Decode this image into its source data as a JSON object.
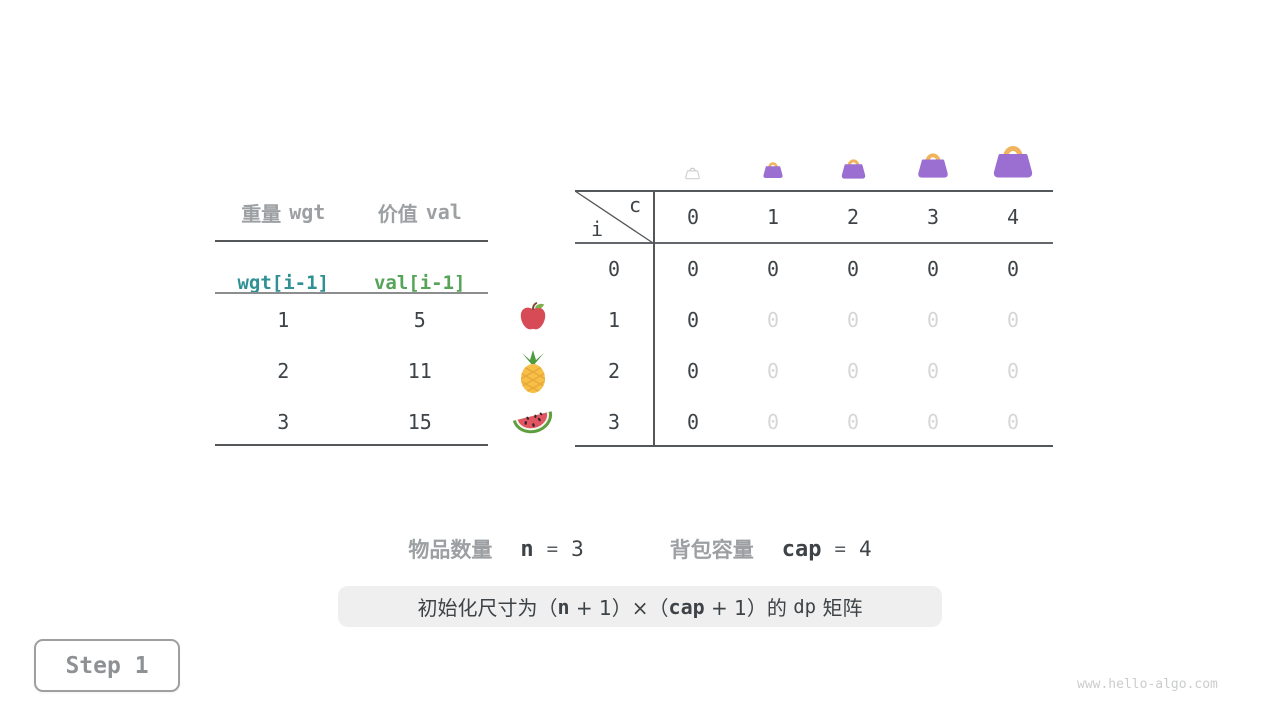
{
  "items_table": {
    "header_weight_cjk": "重量",
    "header_weight_code": "wgt",
    "header_value_cjk": "价值",
    "header_value_code": "val",
    "formula_wgt": "wgt[i-1]",
    "formula_val": "val[i-1]",
    "rows": [
      [
        "1",
        "5"
      ],
      [
        "2",
        "11"
      ],
      [
        "3",
        "15"
      ]
    ],
    "row_icons": [
      "apple-icon",
      "pineapple-icon",
      "watermelon-icon"
    ]
  },
  "dp_matrix": {
    "corner": {
      "col_var": "c",
      "row_var": "i"
    },
    "col_headers": [
      "0",
      "1",
      "2",
      "3",
      "4"
    ],
    "rows": [
      {
        "label": "0",
        "cells": [
          "0",
          "0",
          "0",
          "0",
          "0"
        ]
      },
      {
        "label": "1",
        "cells": [
          "0",
          "0",
          "0",
          "0",
          "0"
        ]
      },
      {
        "label": "2",
        "cells": [
          "0",
          "0",
          "0",
          "0",
          "0"
        ]
      },
      {
        "label": "3",
        "cells": [
          "0",
          "0",
          "0",
          "0",
          "0"
        ]
      }
    ],
    "muted": [
      [
        0,
        0,
        0,
        0,
        0
      ],
      [
        0,
        1,
        1,
        1,
        1
      ],
      [
        0,
        1,
        1,
        1,
        1
      ],
      [
        0,
        1,
        1,
        1,
        1
      ]
    ],
    "capacity_bags": [
      "empty-bag-outline-icon",
      "handbag-icon-xs",
      "handbag-icon-sm",
      "handbag-icon-md",
      "handbag-icon-lg"
    ]
  },
  "info": {
    "items_label": "物品数量",
    "items_var": "n",
    "equals": "=",
    "items_value": "3",
    "capacity_label": "背包容量",
    "capacity_var": "cap",
    "capacity_value": "4"
  },
  "caption": {
    "pre": "初始化尺寸为（",
    "n_var": "n",
    "mid": " + 1）×（",
    "cap_var": "cap",
    "mid2": " + 1）的 ",
    "dp_var": "dp",
    "post": " 矩阵"
  },
  "step": {
    "label": "Step 1"
  },
  "watermark": {
    "text": "www.hello-algo.com"
  },
  "colors": {
    "teal": "#2f9193",
    "green": "#55a457",
    "purple": "#9b6fd2",
    "bag_handle": "#f1b45c",
    "gray_text": "#9da0a3",
    "dark_text": "#3e4347",
    "muted_text": "#d5d6d8",
    "caption_bg": "#efefef"
  }
}
